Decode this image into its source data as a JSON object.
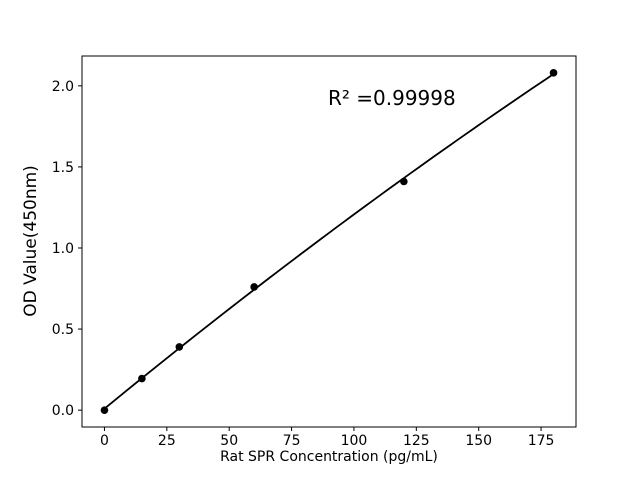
{
  "figure": {
    "background": "#ffffff"
  },
  "chart_data": {
    "type": "scatter",
    "title": "",
    "x": [
      0,
      15,
      30,
      60,
      120,
      180
    ],
    "y": [
      0.0,
      0.195,
      0.39,
      0.76,
      1.41,
      2.08
    ],
    "fit": "quadratic",
    "annotation": "R² =0.99998",
    "xlabel": "Rat SPR Concentration (pg/mL)",
    "ylabel": "OD Value(450nm)",
    "xticks": [
      0,
      25,
      50,
      75,
      100,
      125,
      150,
      175
    ],
    "xtick_labels": [
      "0",
      "25",
      "50",
      "75",
      "100",
      "125",
      "150",
      "175"
    ],
    "yticks": [
      0.0,
      0.5,
      1.0,
      1.5,
      2.0
    ],
    "ytick_labels": [
      "0.0",
      "0.5",
      "1.0",
      "1.5",
      "2.0"
    ],
    "xlim": [
      -9,
      189
    ],
    "ylim": [
      -0.104,
      2.184
    ],
    "grid": false,
    "legend": "none",
    "colors": {
      "line": "#000000",
      "marker": "#000000",
      "text": "#000000",
      "spine": "#000000",
      "background": "#ffffff"
    }
  }
}
